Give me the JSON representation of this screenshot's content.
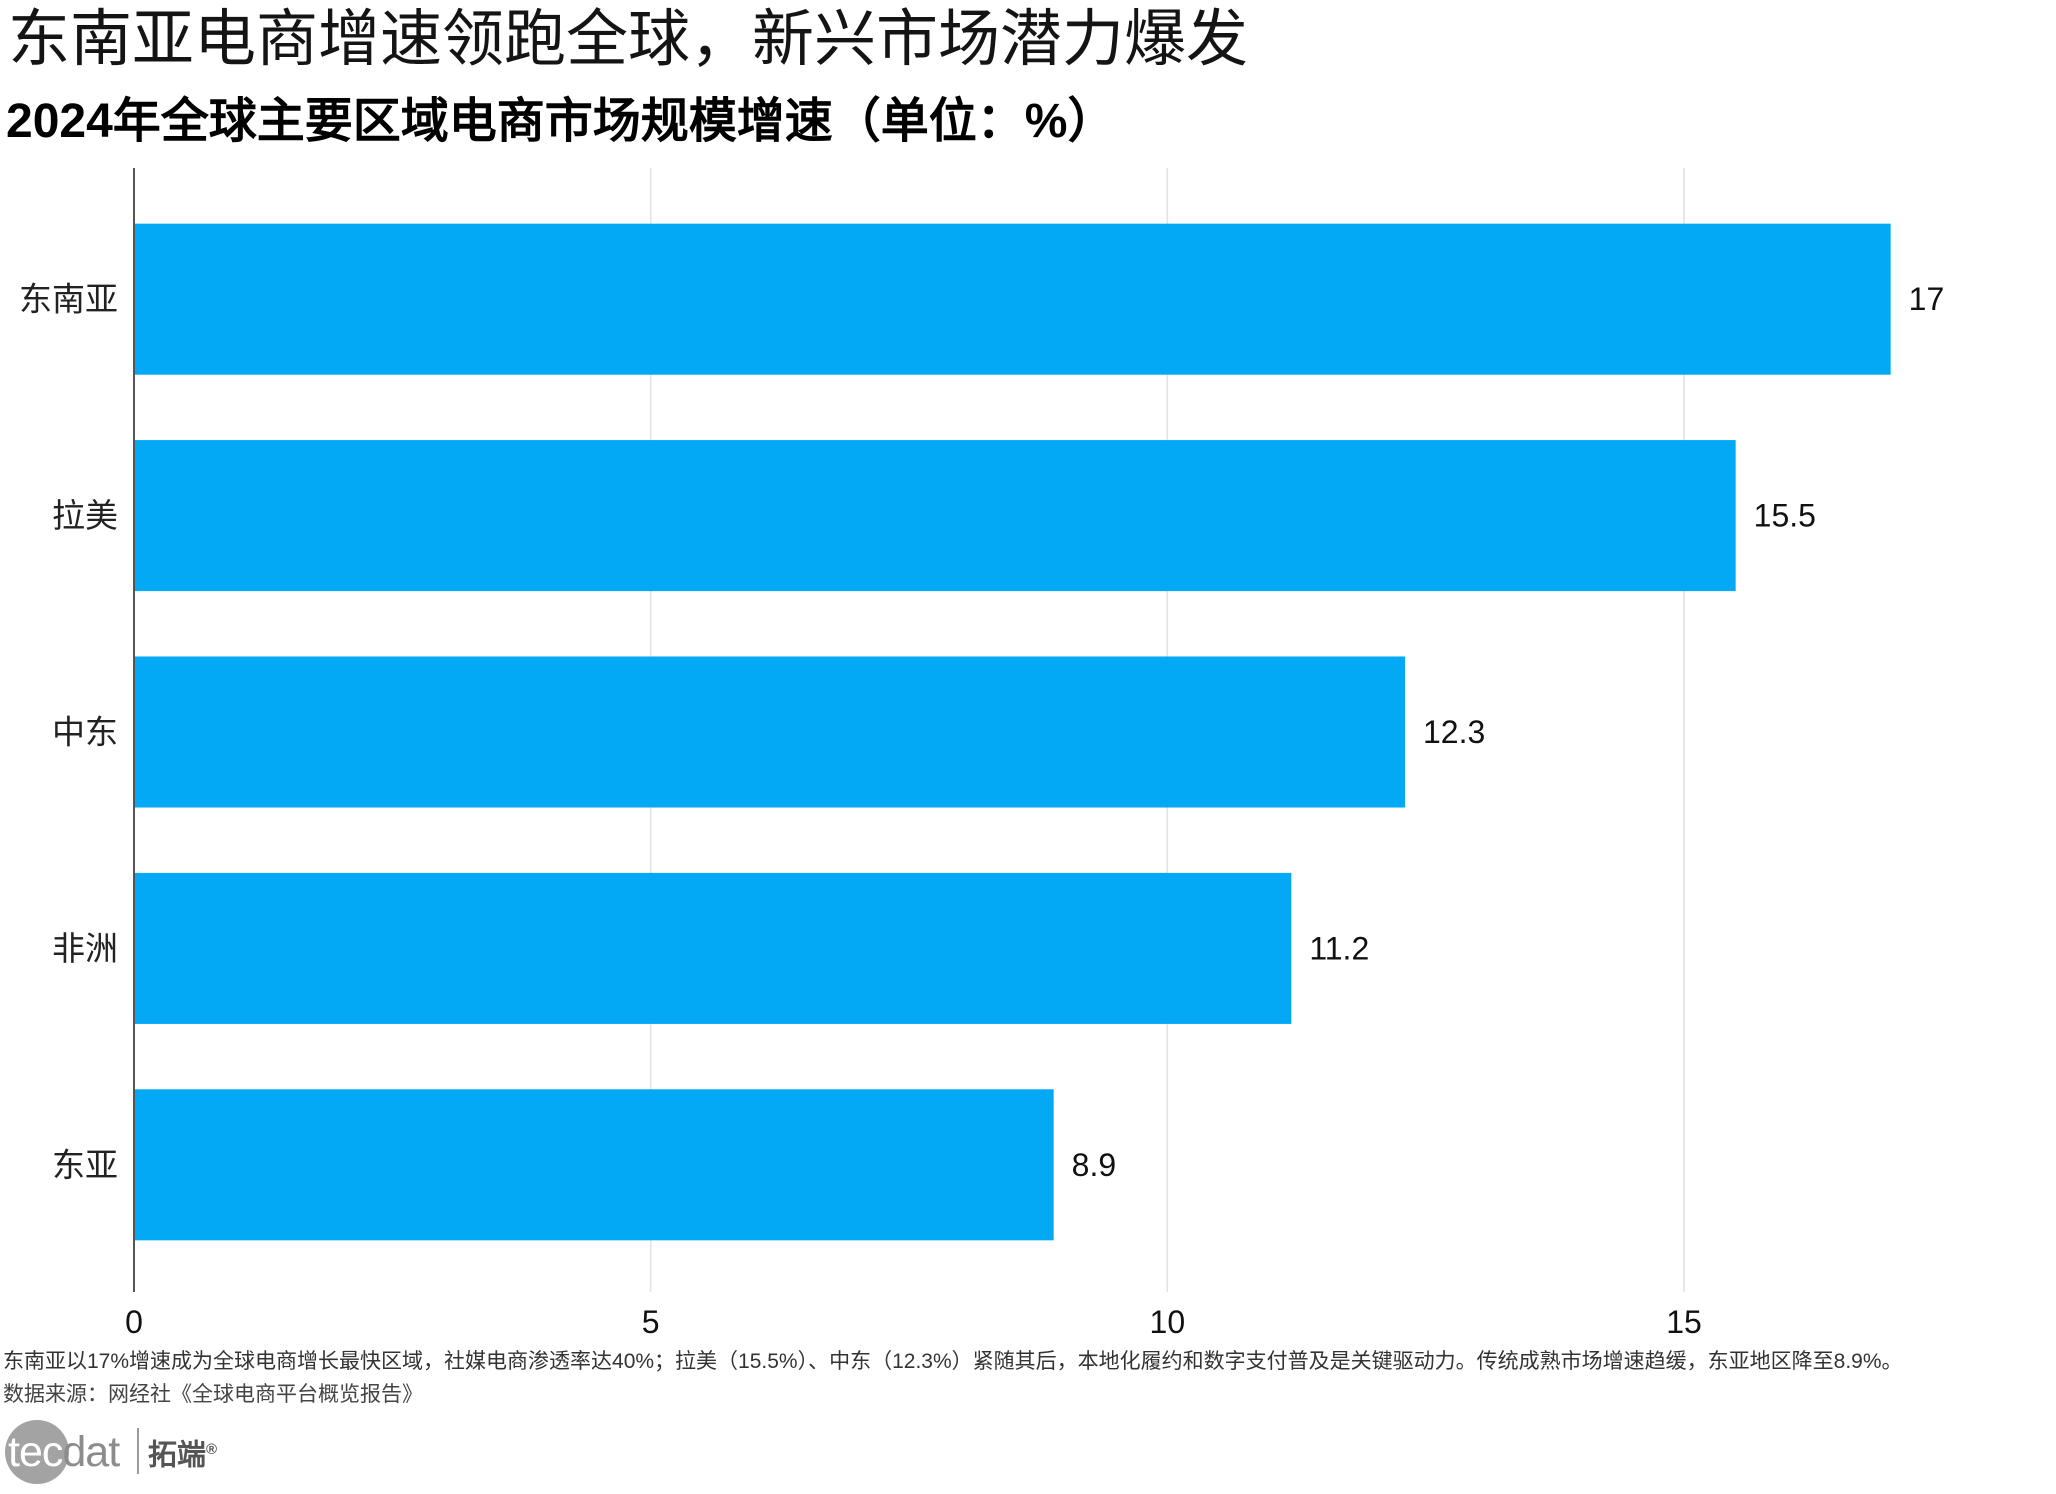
{
  "header": {
    "headline": "东南亚电商增速领跑全球，新兴市场潜力爆发"
  },
  "chart_data": {
    "type": "bar",
    "horizontal": true,
    "title": "2024年全球主要区域电商市场规模增速（单位：%）",
    "xlabel": "",
    "ylabel": "",
    "categories": [
      "东南亚",
      "拉美",
      "中东",
      "非洲",
      "东亚"
    ],
    "values": [
      17,
      15.5,
      12.3,
      11.2,
      8.9
    ],
    "xlim": [
      0,
      18
    ],
    "xticks": [
      0,
      5,
      10,
      15
    ],
    "grid": true,
    "bar_color": "#03A9F4"
  },
  "footer": {
    "note": "东南亚以17%增速成为全球电商增长最快区域，社媒电商渗透率达40%；拉美（15.5%）、中东（12.3%）紧随其后，本地化履约和数字支付普及是关键驱动力。传统成熟市场增速趋缓，东亚地区降至8.9%。",
    "source": "数据来源：网经社《全球电商平台概览报告》"
  },
  "logo": {
    "word_left": "tec",
    "word_right": "dat",
    "brand": "拓端",
    "reg_mark": "®"
  }
}
